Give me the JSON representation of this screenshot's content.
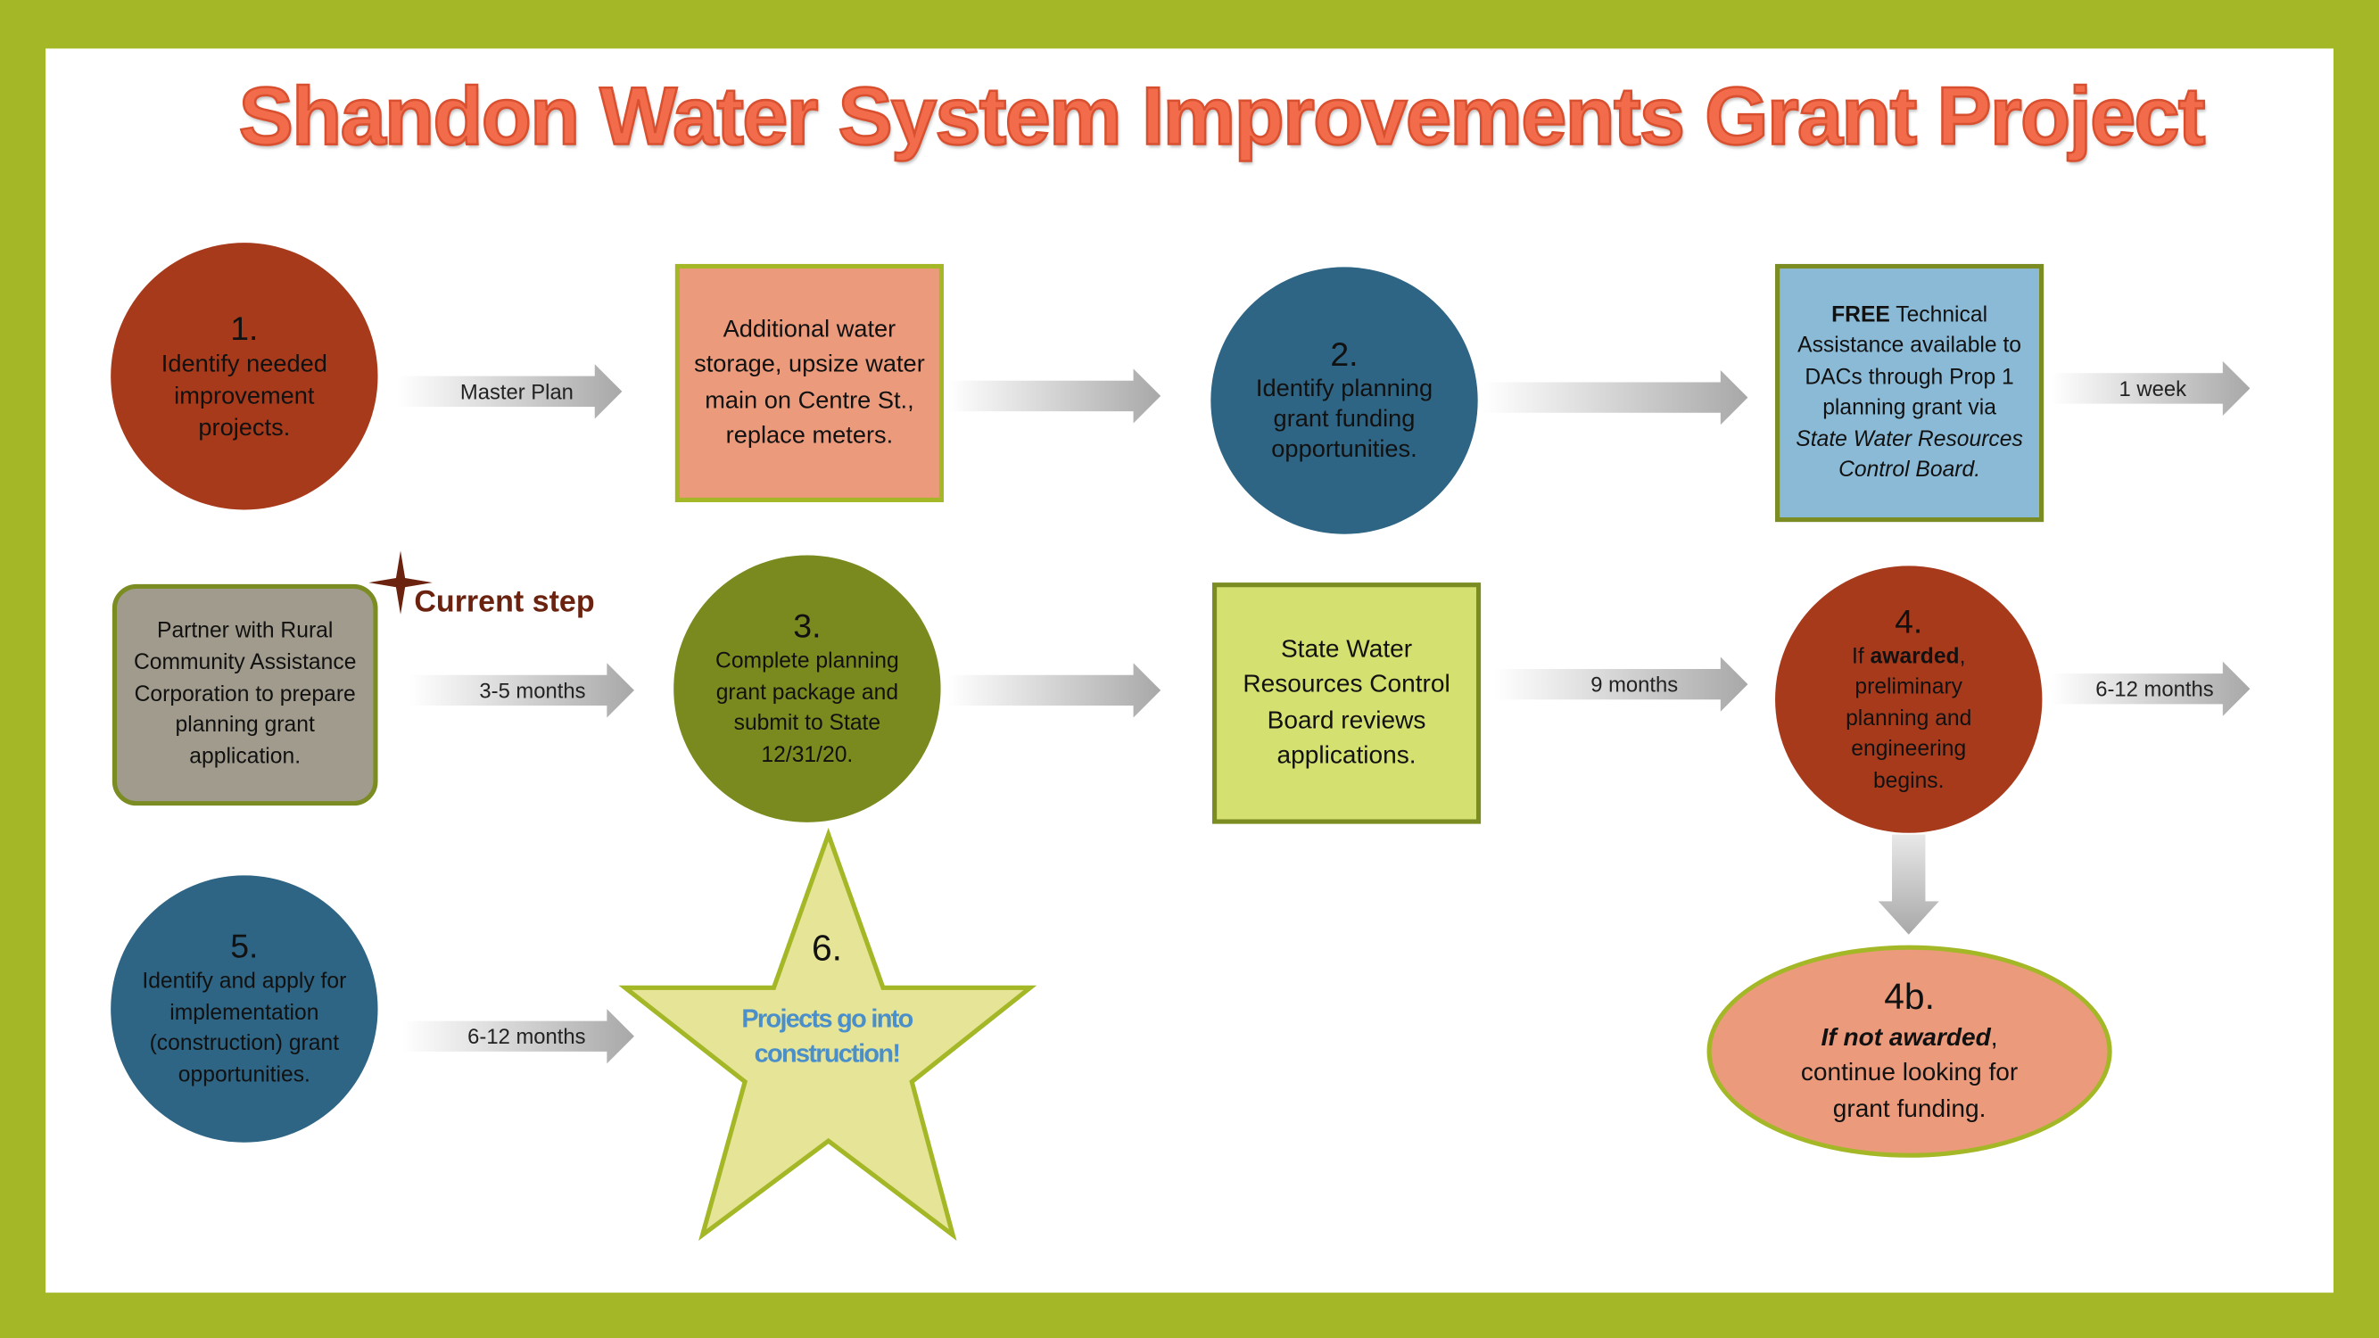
{
  "title": "Shandon Water System Improvements Grant Project",
  "colors": {
    "border_green": "#a4b727",
    "rust": "#a83a1c",
    "blue": "#2e6484",
    "olive": "#7a8a1e",
    "salmon": "#ec9a7c",
    "light_blue": "#8bbad7",
    "lime": "#d4e070",
    "gray": "#a09b8c",
    "star_fill": "#e6e496",
    "accent_blue": "#4a8fc9",
    "current_step": "#6b2310"
  },
  "steps": {
    "s1": {
      "num": "1.",
      "text": "Identify needed improvement projects."
    },
    "projects_box": {
      "text": "Additional water storage, upsize water main on Centre St., replace meters."
    },
    "s2": {
      "num": "2.",
      "text": "Identify planning grant funding opportunities."
    },
    "ta_box": {
      "bold": "FREE",
      "text1": " Technical Assistance available to DACs through Prop 1 planning grant via ",
      "italic": "State Water Resources Control Board."
    },
    "partner_box": {
      "text": "Partner with Rural Community Assistance Corporation to prepare planning grant application."
    },
    "current": {
      "label": "Current step",
      "icon": "four-point-star-icon"
    },
    "s3": {
      "num": "3.",
      "text": "Complete planning grant package and submit to State 12/31/20."
    },
    "review_box": {
      "text": "State Water Resources Control Board reviews applications."
    },
    "s4": {
      "num": "4.",
      "pre": "If ",
      "bold": "awarded",
      "post": ", preliminary planning and engineering begins."
    },
    "s4b": {
      "num": "4b.",
      "bold_italic": "If not awarded",
      "post": ", continue looking for grant funding."
    },
    "s5": {
      "num": "5.",
      "text": "Identify and apply for implementation (construction) grant opportunities."
    },
    "s6": {
      "num": "6.",
      "text": "Projects go into construction!"
    }
  },
  "arrows": {
    "a1": "Master Plan",
    "a2": "",
    "a3": "",
    "a4": "1 week",
    "a5": "3-5 months",
    "a6": "",
    "a7": "9 months",
    "a8": "6-12 months",
    "a9": "6-12 months"
  }
}
